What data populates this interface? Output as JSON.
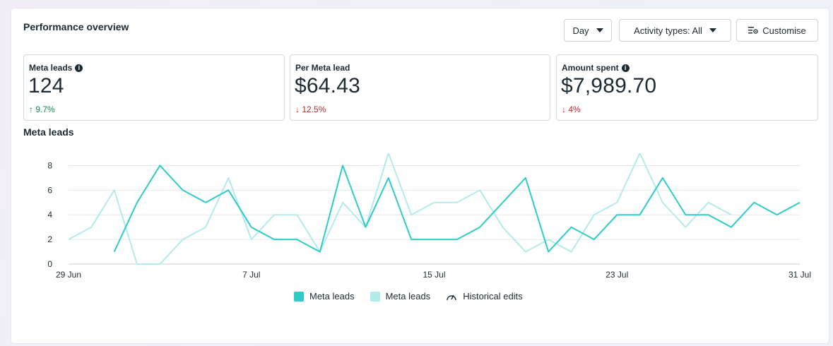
{
  "header": {
    "title": "Performance overview",
    "day_label": "Day",
    "activity_label": "Activity types: All",
    "customise_label": "Customise"
  },
  "kpis": [
    {
      "label": "Meta leads",
      "value": "124",
      "delta": "↑ 9.7%",
      "direction": "up",
      "info_icon": true
    },
    {
      "label": "Per Meta lead",
      "value": "$64.43",
      "delta": "↓ 12.5%",
      "direction": "down",
      "info_icon": false
    },
    {
      "label": "Amount spent",
      "value": "$7,989.70",
      "delta": "↓ 4%",
      "direction": "down",
      "info_icon": true
    }
  ],
  "chart_data": {
    "type": "line",
    "title": "Meta leads",
    "x_ticks": [
      "29 Jun",
      "7 Jul",
      "15 Jul",
      "23 Jul",
      "31 Jul"
    ],
    "y_ticks": [
      0,
      2,
      4,
      6,
      8
    ],
    "ylim": [
      0,
      9
    ],
    "x_start": "29 Jun",
    "series": [
      {
        "name": "Meta leads",
        "color": "#2fcbc7",
        "values": [
          null,
          null,
          1,
          5,
          8,
          6,
          5,
          6,
          3,
          2,
          2,
          1,
          8,
          3,
          7,
          2,
          2,
          2,
          3,
          5,
          7,
          1,
          3,
          2,
          4,
          4,
          7,
          4,
          4,
          3,
          5,
          4,
          5
        ]
      },
      {
        "name": "Meta leads",
        "color": "#b3ebea",
        "values": [
          2,
          3,
          6,
          0,
          0,
          2,
          3,
          7,
          2,
          4,
          4,
          1,
          5,
          3,
          9,
          4,
          5,
          5,
          6,
          3,
          1,
          2,
          1,
          4,
          5,
          9,
          5,
          3,
          5,
          4,
          null,
          null,
          null
        ]
      }
    ],
    "legend": [
      "Meta leads",
      "Meta leads",
      "Historical edits"
    ],
    "legend_position": "bottom"
  }
}
